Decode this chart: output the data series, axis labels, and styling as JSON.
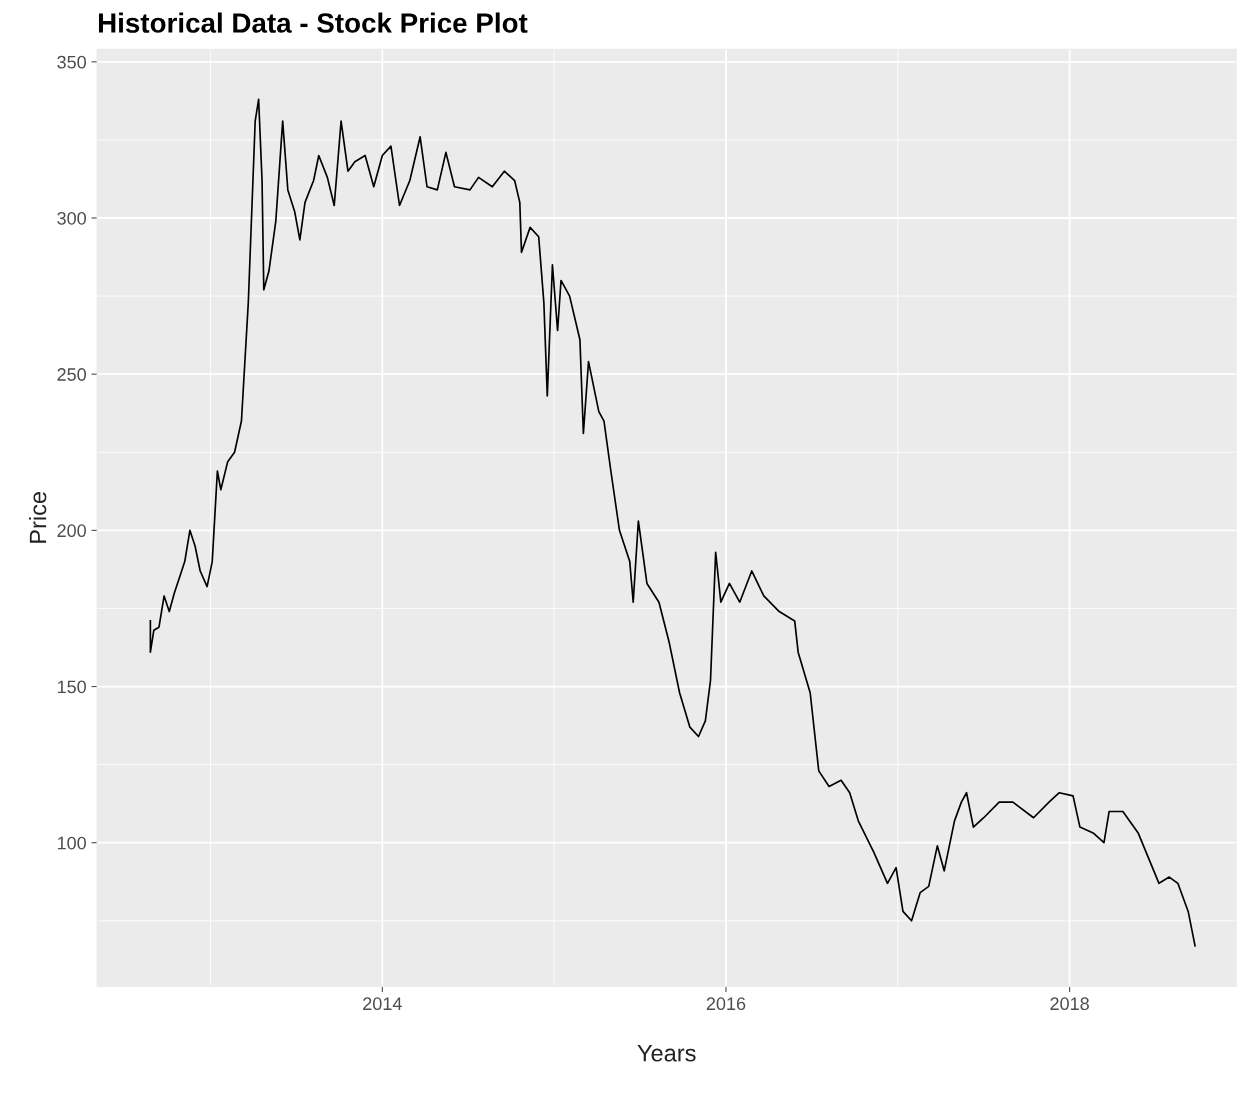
{
  "chart_data": {
    "type": "line",
    "title": "Historical Data - Stock Price Plot",
    "xlabel": "Years",
    "ylabel": "Price",
    "xlim": [
      2012.34,
      2018.97
    ],
    "xticks": [
      2014,
      2016,
      2018
    ],
    "ylim": [
      54,
      354
    ],
    "yticks": [
      100,
      150,
      200,
      250,
      300,
      350
    ],
    "grid": true,
    "marker": "none",
    "line_style": "solid",
    "x": [
      2012.65,
      2012.65,
      2012.67,
      2012.7,
      2012.73,
      2012.76,
      2012.79,
      2012.82,
      2012.85,
      2012.88,
      2012.91,
      2012.94,
      2012.98,
      2013.01,
      2013.04,
      2013.06,
      2013.1,
      2013.14,
      2013.18,
      2013.22,
      2013.24,
      2013.26,
      2013.28,
      2013.3,
      2013.31,
      2013.34,
      2013.38,
      2013.42,
      2013.45,
      2013.49,
      2013.52,
      2013.55,
      2013.6,
      2013.63,
      2013.68,
      2013.72,
      2013.76,
      2013.8,
      2013.84,
      2013.9,
      2013.95,
      2014.0,
      2014.05,
      2014.1,
      2014.16,
      2014.22,
      2014.26,
      2014.32,
      2014.37,
      2014.42,
      2014.51,
      2014.56,
      2014.64,
      2014.71,
      2014.77,
      2014.8,
      2014.81,
      2014.86,
      2014.91,
      2014.94,
      2014.96,
      2014.99,
      2015.02,
      2015.04,
      2015.09,
      2015.15,
      2015.17,
      2015.2,
      2015.26,
      2015.29,
      2015.33,
      2015.38,
      2015.44,
      2015.46,
      2015.49,
      2015.54,
      2015.61,
      2015.67,
      2015.73,
      2015.79,
      2015.84,
      2015.88,
      2015.91,
      2015.94,
      2015.97,
      2016.02,
      2016.08,
      2016.15,
      2016.22,
      2016.31,
      2016.4,
      2016.42,
      2016.49,
      2016.54,
      2016.6,
      2016.67,
      2016.72,
      2016.77,
      2016.86,
      2016.94,
      2016.99,
      2017.03,
      2017.08,
      2017.13,
      2017.18,
      2017.23,
      2017.27,
      2017.33,
      2017.37,
      2017.4,
      2017.44,
      2017.5,
      2017.59,
      2017.67,
      2017.79,
      2017.88,
      2017.94,
      2018.02,
      2018.06,
      2018.14,
      2018.2,
      2018.23,
      2018.31,
      2018.4,
      2018.46,
      2018.52,
      2018.58,
      2018.63,
      2018.69,
      2018.73
    ],
    "series": [
      {
        "color": "#000000",
        "values": [
          171,
          161,
          168,
          169,
          179,
          174,
          180,
          185,
          190,
          200,
          195,
          187,
          182,
          190,
          219,
          213,
          222,
          225,
          235,
          273,
          302,
          331,
          338,
          312,
          277,
          283,
          299,
          331,
          309,
          302,
          293,
          305,
          312,
          320,
          313,
          304,
          331,
          315,
          318,
          320,
          310,
          320,
          323,
          304,
          312,
          326,
          310,
          309,
          321,
          310,
          309,
          313,
          310,
          315,
          312,
          305,
          289,
          297,
          294,
          273,
          243,
          285,
          264,
          280,
          275,
          261,
          231,
          254,
          238,
          235,
          219,
          200,
          190,
          177,
          203,
          183,
          177,
          164,
          148,
          137,
          134,
          139,
          152,
          193,
          177,
          183,
          177,
          187,
          179,
          174,
          171,
          161,
          148,
          123,
          118,
          120,
          116,
          107,
          97,
          87,
          92,
          78,
          75,
          84,
          86,
          99,
          91,
          107,
          113,
          116,
          105,
          108,
          113,
          113,
          108,
          113,
          116,
          115,
          105,
          103,
          100,
          110,
          110,
          103,
          95,
          87,
          89,
          87,
          78,
          67
        ]
      }
    ]
  }
}
